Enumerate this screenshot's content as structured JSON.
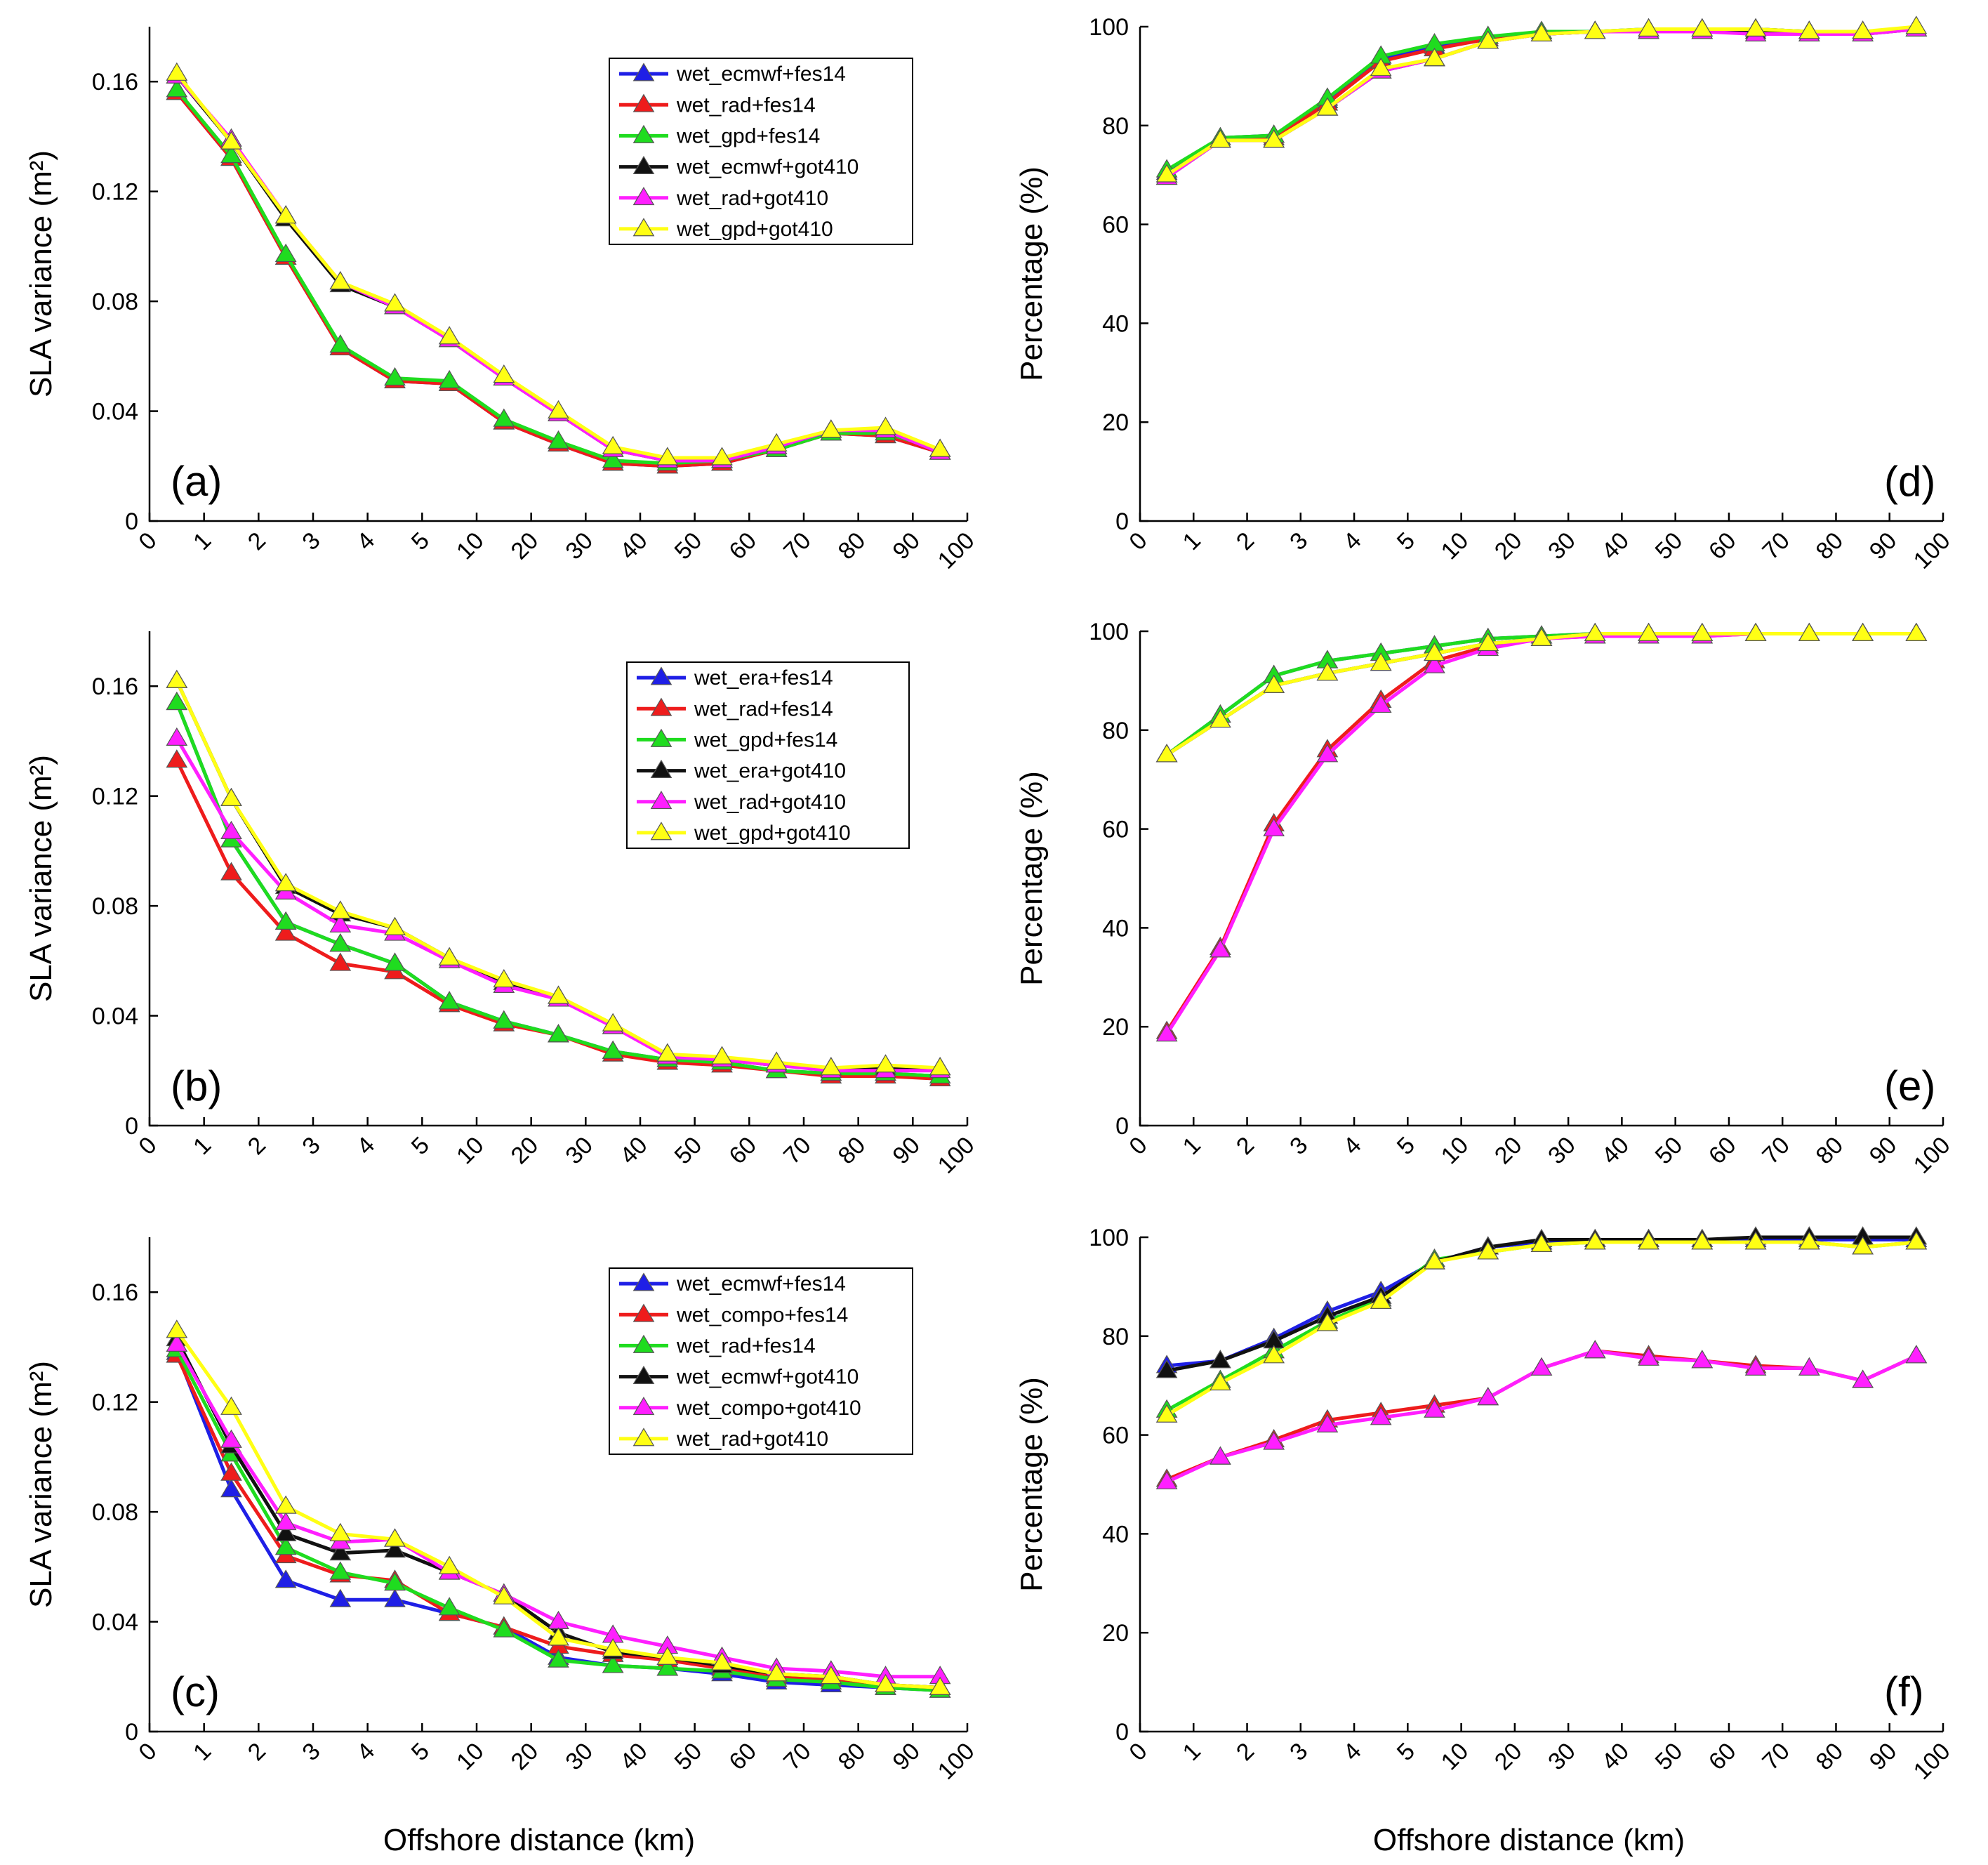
{
  "figure": {
    "xlabel": "Offshore distance (km)",
    "x_ticks": [
      "0",
      "1",
      "2",
      "3",
      "4",
      "5",
      "10",
      "20",
      "30",
      "40",
      "50",
      "60",
      "70",
      "80",
      "90",
      "100"
    ],
    "colors": {
      "blue": "#1f1fe6",
      "red": "#ee1c1c",
      "green": "#1fdc1f",
      "black": "#111111",
      "magenta": "#ff1fff",
      "yellow": "#ffff14"
    }
  },
  "chart_data": [
    {
      "id": "a",
      "label": "(a)",
      "type": "line",
      "ylabel": "SLA variance (m²)",
      "ylim": [
        0,
        0.18
      ],
      "yticks": [
        "0",
        "0.04",
        "0.08",
        "0.12",
        "0.16"
      ],
      "ytick_values": [
        0,
        0.04,
        0.08,
        0.12,
        0.16
      ],
      "legend": true,
      "series": [
        {
          "name": "wet_ecmwf+fes14",
          "color": "blue",
          "values": [
            0.156,
            0.132,
            0.096,
            0.063,
            0.051,
            0.05,
            0.036,
            0.028,
            0.021,
            0.02,
            0.021,
            0.026,
            0.032,
            0.031,
            0.025
          ]
        },
        {
          "name": "wet_rad+fes14",
          "color": "red",
          "values": [
            0.156,
            0.132,
            0.096,
            0.063,
            0.051,
            0.05,
            0.036,
            0.028,
            0.021,
            0.02,
            0.021,
            0.026,
            0.032,
            0.031,
            0.025
          ]
        },
        {
          "name": "wet_gpd+fes14",
          "color": "green",
          "values": [
            0.157,
            0.133,
            0.097,
            0.064,
            0.052,
            0.051,
            0.037,
            0.029,
            0.022,
            0.021,
            0.022,
            0.026,
            0.032,
            0.032,
            0.026
          ]
        },
        {
          "name": "wet_ecmwf+got410",
          "color": "black",
          "values": [
            0.162,
            0.138,
            0.11,
            0.086,
            0.078,
            0.066,
            0.052,
            0.039,
            0.026,
            0.022,
            0.022,
            0.027,
            0.033,
            0.033,
            0.025
          ]
        },
        {
          "name": "wet_rad+got410",
          "color": "magenta",
          "values": [
            0.162,
            0.139,
            0.111,
            0.087,
            0.078,
            0.066,
            0.052,
            0.039,
            0.026,
            0.022,
            0.022,
            0.027,
            0.033,
            0.033,
            0.025
          ]
        },
        {
          "name": "wet_gpd+got410",
          "color": "yellow",
          "values": [
            0.163,
            0.138,
            0.111,
            0.087,
            0.079,
            0.067,
            0.053,
            0.04,
            0.027,
            0.023,
            0.023,
            0.028,
            0.033,
            0.034,
            0.026
          ]
        }
      ]
    },
    {
      "id": "b",
      "label": "(b)",
      "type": "line",
      "ylabel": "SLA variance (m²)",
      "ylim": [
        0,
        0.18
      ],
      "yticks": [
        "0",
        "0.04",
        "0.08",
        "0.12",
        "0.16"
      ],
      "ytick_values": [
        0,
        0.04,
        0.08,
        0.12,
        0.16
      ],
      "legend": true,
      "series": [
        {
          "name": "wet_era+fes14",
          "color": "blue",
          "values": [
            0.154,
            0.104,
            0.074,
            0.066,
            0.059,
            0.045,
            0.038,
            0.033,
            0.027,
            0.024,
            0.023,
            0.02,
            0.019,
            0.019,
            0.018
          ]
        },
        {
          "name": "wet_rad+fes14",
          "color": "red",
          "values": [
            0.133,
            0.092,
            0.07,
            0.059,
            0.056,
            0.044,
            0.037,
            0.033,
            0.026,
            0.023,
            0.022,
            0.02,
            0.018,
            0.018,
            0.017
          ]
        },
        {
          "name": "wet_gpd+fes14",
          "color": "green",
          "values": [
            0.154,
            0.104,
            0.074,
            0.066,
            0.059,
            0.045,
            0.038,
            0.033,
            0.027,
            0.024,
            0.023,
            0.02,
            0.019,
            0.019,
            0.018
          ]
        },
        {
          "name": "wet_era+got410",
          "color": "black",
          "values": [
            0.162,
            0.119,
            0.087,
            0.077,
            0.072,
            0.061,
            0.052,
            0.047,
            0.036,
            0.026,
            0.024,
            0.022,
            0.021,
            0.021,
            0.021
          ]
        },
        {
          "name": "wet_rad+got410",
          "color": "magenta",
          "values": [
            0.141,
            0.107,
            0.085,
            0.073,
            0.07,
            0.06,
            0.051,
            0.046,
            0.036,
            0.025,
            0.024,
            0.022,
            0.02,
            0.02,
            0.02
          ]
        },
        {
          "name": "wet_gpd+got410",
          "color": "yellow",
          "values": [
            0.162,
            0.119,
            0.088,
            0.078,
            0.072,
            0.061,
            0.053,
            0.047,
            0.037,
            0.026,
            0.025,
            0.023,
            0.021,
            0.022,
            0.021
          ]
        }
      ]
    },
    {
      "id": "c",
      "label": "(c)",
      "type": "line",
      "ylabel": "SLA variance (m²)",
      "ylim": [
        0,
        0.18
      ],
      "yticks": [
        "0",
        "0.04",
        "0.08",
        "0.12",
        "0.16"
      ],
      "ytick_values": [
        0,
        0.04,
        0.08,
        0.12,
        0.16
      ],
      "legend": true,
      "series": [
        {
          "name": "wet_ecmwf+fes14",
          "color": "blue",
          "values": [
            0.138,
            0.088,
            0.055,
            0.048,
            0.048,
            0.043,
            0.038,
            0.027,
            0.024,
            0.023,
            0.021,
            0.018,
            0.017,
            0.016,
            0.015
          ]
        },
        {
          "name": "wet_compo+fes14",
          "color": "red",
          "values": [
            0.137,
            0.094,
            0.064,
            0.057,
            0.055,
            0.043,
            0.038,
            0.031,
            0.028,
            0.026,
            0.023,
            0.02,
            0.019,
            0.017,
            0.016
          ]
        },
        {
          "name": "wet_rad+fes14",
          "color": "green",
          "values": [
            0.139,
            0.101,
            0.067,
            0.058,
            0.054,
            0.045,
            0.037,
            0.026,
            0.024,
            0.023,
            0.022,
            0.019,
            0.018,
            0.016,
            0.015
          ]
        },
        {
          "name": "wet_ecmwf+got410",
          "color": "black",
          "values": [
            0.143,
            0.104,
            0.072,
            0.065,
            0.066,
            0.058,
            0.05,
            0.036,
            0.029,
            0.027,
            0.024,
            0.021,
            0.02,
            0.017,
            0.016
          ]
        },
        {
          "name": "wet_compo+got410",
          "color": "magenta",
          "values": [
            0.141,
            0.106,
            0.076,
            0.069,
            0.07,
            0.058,
            0.05,
            0.04,
            0.035,
            0.031,
            0.027,
            0.023,
            0.022,
            0.02,
            0.02
          ]
        },
        {
          "name": "wet_rad+got410",
          "color": "yellow",
          "values": [
            0.146,
            0.118,
            0.082,
            0.072,
            0.07,
            0.06,
            0.049,
            0.034,
            0.03,
            0.027,
            0.025,
            0.021,
            0.02,
            0.017,
            0.016
          ]
        }
      ]
    },
    {
      "id": "d",
      "label": "(d)",
      "type": "line",
      "ylabel": "Percentage (%)",
      "ylim": [
        0,
        100
      ],
      "yticks": [
        "0",
        "20",
        "40",
        "60",
        "80",
        "100"
      ],
      "ytick_values": [
        0,
        20,
        40,
        60,
        80,
        100
      ],
      "legend": false,
      "series": [
        {
          "name": "wet_ecmwf+fes14",
          "color": "blue",
          "values": [
            70.5,
            77.5,
            78,
            85,
            93.5,
            96,
            97.5,
            98.5,
            99,
            99.5,
            99.5,
            99.5,
            99,
            99,
            99.5
          ]
        },
        {
          "name": "wet_rad+fes14",
          "color": "red",
          "values": [
            70,
            77,
            77.5,
            84.5,
            93,
            95.5,
            97.5,
            98.5,
            99,
            99,
            99.5,
            99.5,
            99,
            99,
            99.5
          ]
        },
        {
          "name": "wet_gpd+fes14",
          "color": "green",
          "values": [
            71,
            77.5,
            78,
            85.5,
            94,
            96.5,
            98,
            99,
            99,
            99.5,
            99.5,
            99.5,
            99,
            99,
            99.5
          ]
        },
        {
          "name": "wet_ecmwf+got410",
          "color": "black",
          "values": [
            69.5,
            77,
            77,
            83.5,
            91,
            93.5,
            97,
            98.5,
            99,
            99,
            99,
            99,
            98.5,
            98.5,
            99.5
          ]
        },
        {
          "name": "wet_rad+got410",
          "color": "magenta",
          "values": [
            69.5,
            77,
            77,
            83.5,
            91,
            93.5,
            97,
            98.5,
            99,
            99,
            99,
            98.5,
            98.5,
            98.5,
            99.5
          ]
        },
        {
          "name": "wet_gpd+got410",
          "color": "yellow",
          "values": [
            70,
            77,
            77,
            83.5,
            91.5,
            93.5,
            97,
            98.5,
            99,
            99.5,
            99.5,
            99.5,
            99,
            99,
            100
          ]
        }
      ]
    },
    {
      "id": "e",
      "label": "(e)",
      "type": "line",
      "ylabel": "Percentage (%)",
      "ylim": [
        0,
        100
      ],
      "yticks": [
        "0",
        "20",
        "40",
        "60",
        "80",
        "100"
      ],
      "ytick_values": [
        0,
        20,
        40,
        60,
        80,
        100
      ],
      "legend": false,
      "series": [
        {
          "name": "wet_era+fes14",
          "color": "blue",
          "values": [
            75,
            83,
            91,
            94,
            95.5,
            97,
            98.5,
            99,
            99.5,
            99.5,
            99.5,
            99.5,
            99.5,
            99.5,
            99.5
          ]
        },
        {
          "name": "wet_rad+fes14",
          "color": "red",
          "values": [
            19,
            36,
            61,
            76,
            86,
            94,
            97,
            98.5,
            99,
            99,
            99,
            99.5,
            99.5,
            99.5,
            99.5
          ]
        },
        {
          "name": "wet_gpd+fes14",
          "color": "green",
          "values": [
            75,
            83,
            91,
            94,
            95.5,
            97,
            98.5,
            99,
            99.5,
            99.5,
            99.5,
            99.5,
            99.5,
            99.5,
            99.5
          ]
        },
        {
          "name": "wet_era+got410",
          "color": "black",
          "values": [
            75,
            82,
            89,
            91.5,
            93.5,
            95.5,
            97.5,
            98.5,
            99.5,
            99.5,
            99.5,
            99.5,
            99.5,
            99.5,
            99.5
          ]
        },
        {
          "name": "wet_rad+got410",
          "color": "magenta",
          "values": [
            18.5,
            35.5,
            60,
            75,
            85,
            93,
            96.5,
            98.5,
            99,
            99,
            99,
            99.5,
            99.5,
            99.5,
            99.5
          ]
        },
        {
          "name": "wet_gpd+got410",
          "color": "yellow",
          "values": [
            75,
            82,
            89,
            91.5,
            93.5,
            95.5,
            97.5,
            98.5,
            99.5,
            99.5,
            99.5,
            99.5,
            99.5,
            99.5,
            99.5
          ]
        }
      ]
    },
    {
      "id": "f",
      "label": "(f)",
      "type": "line",
      "ylabel": "Percentage (%)",
      "ylim": [
        0,
        100
      ],
      "yticks": [
        "0",
        "20",
        "40",
        "60",
        "80",
        "100"
      ],
      "ytick_values": [
        0,
        20,
        40,
        60,
        80,
        100
      ],
      "legend": false,
      "series": [
        {
          "name": "wet_ecmwf+fes14",
          "color": "blue",
          "values": [
            74,
            75,
            79.5,
            85,
            89,
            95,
            98,
            99,
            99.5,
            99.5,
            99.5,
            99.5,
            99.5,
            99.5,
            99.5
          ]
        },
        {
          "name": "wet_compo+fes14",
          "color": "red",
          "values": [
            51,
            55.5,
            59,
            63,
            64.5,
            66,
            67.5,
            73.5,
            77,
            76,
            75,
            74,
            73.5,
            71,
            76
          ]
        },
        {
          "name": "wet_rad+fes14",
          "color": "green",
          "values": [
            65,
            71,
            77,
            83,
            87.5,
            95.5,
            97,
            98.5,
            99,
            99,
            99,
            99,
            99,
            98,
            99
          ]
        },
        {
          "name": "wet_ecmwf+got410",
          "color": "black",
          "values": [
            73,
            75,
            79,
            84,
            88,
            95,
            98,
            99.5,
            99.5,
            99.5,
            99.5,
            100,
            100,
            100,
            100
          ]
        },
        {
          "name": "wet_compo+got410",
          "color": "magenta",
          "values": [
            50.5,
            55.5,
            58.5,
            62,
            63.5,
            65,
            67.5,
            73.5,
            77,
            75.5,
            75,
            73.5,
            73.5,
            71,
            76
          ]
        },
        {
          "name": "wet_rad+got410",
          "color": "yellow",
          "values": [
            64,
            70.5,
            76,
            82.5,
            87,
            95,
            97,
            98.5,
            99,
            99,
            99,
            99,
            99,
            98,
            99
          ]
        }
      ]
    }
  ]
}
